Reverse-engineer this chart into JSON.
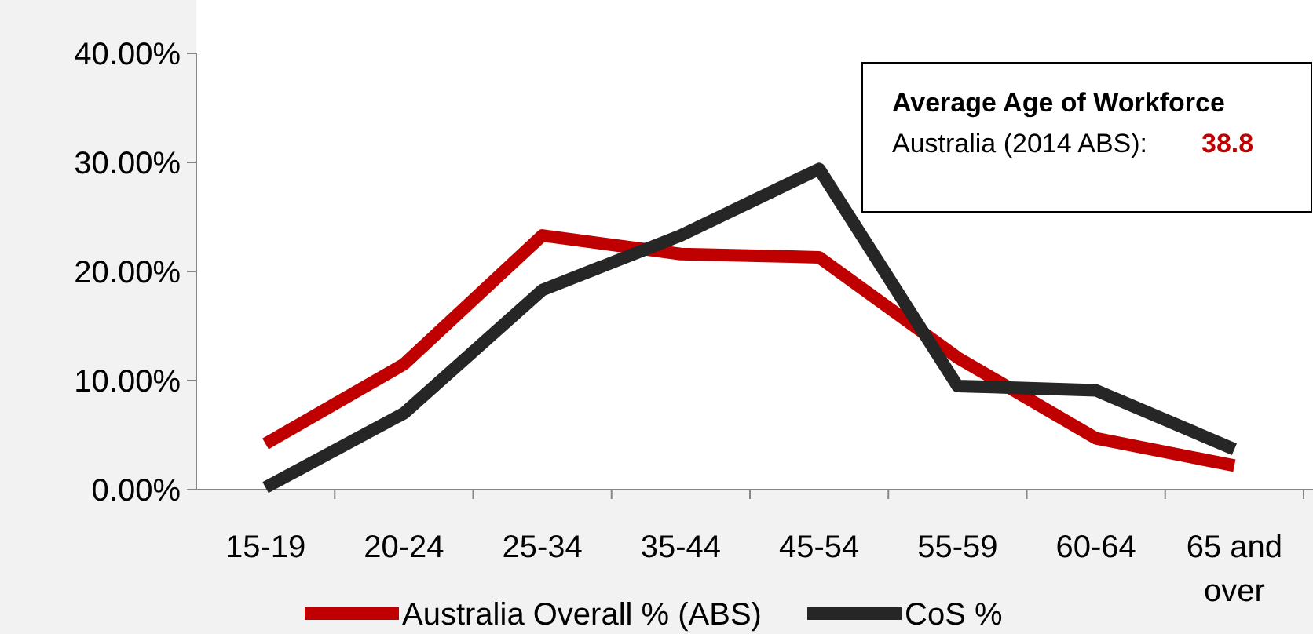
{
  "chart_data": {
    "type": "line",
    "categories": [
      "15-19",
      "20-24",
      "25-34",
      "35-44",
      "45-54",
      "55-59",
      "60-64",
      "65 and over"
    ],
    "series": [
      {
        "name": "Australia Overall % (ABS)",
        "color": "#c00000",
        "values": [
          4.2,
          11.5,
          23.3,
          21.6,
          21.3,
          12.1,
          4.7,
          2.2
        ]
      },
      {
        "name": "CoS %",
        "color": "#262626",
        "values": [
          0.2,
          7.0,
          18.3,
          23.3,
          29.4,
          9.5,
          9.1,
          3.7
        ]
      }
    ],
    "ylim": [
      0,
      40
    ],
    "yticks": [
      {
        "value": 0,
        "label": "0.00%"
      },
      {
        "value": 10,
        "label": "10.00%"
      },
      {
        "value": 20,
        "label": "20.00%"
      },
      {
        "value": 30,
        "label": "30.00%"
      },
      {
        "value": 40,
        "label": "40.00%"
      }
    ],
    "annotations": [
      "Average Age of Workforce",
      "Australia (2014 ABS):",
      "38.8"
    ],
    "legend": "bottom",
    "grid": false,
    "marker": "none",
    "line_style": "solid"
  }
}
